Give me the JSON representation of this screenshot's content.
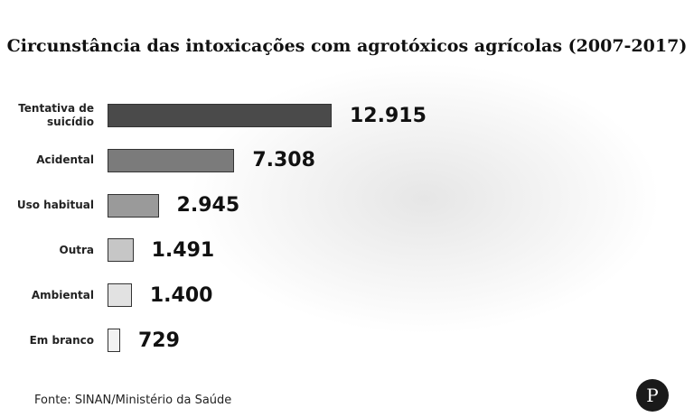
{
  "chart_data": {
    "type": "bar",
    "orientation": "horizontal",
    "title": "Circunstância das intoxicações com agrotóxicos agrícolas (2007-2017)",
    "categories": [
      "Tentativa de suicídio",
      "Acidental",
      "Uso habitual",
      "Outra",
      "Ambiental",
      "Em branco"
    ],
    "values": [
      12915,
      7308,
      2945,
      1491,
      1400,
      729
    ],
    "value_labels": [
      "12.915",
      "7.308",
      "2.945",
      "1.491",
      "1.400",
      "729"
    ],
    "colors": [
      "#4a4a4a",
      "#7b7b7b",
      "#9a9a9a",
      "#c6c6c6",
      "#e2e2e2",
      "#f2f2f2"
    ],
    "source": "Fonte: SINAN/Ministério da Saúde",
    "logo": "P"
  }
}
